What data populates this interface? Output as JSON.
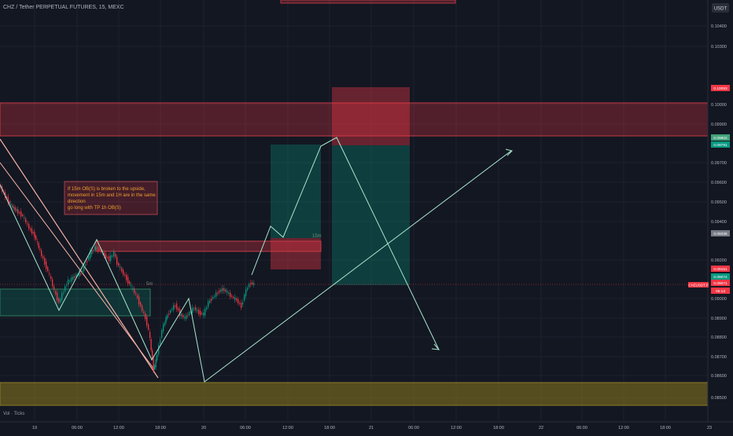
{
  "symbol_title": "CHZ / Tether PERPETUAL FUTURES, 15, MEXC",
  "currency_button": "USDT",
  "indicator_label": "Vol · Ticks",
  "annotation_lines": [
    "If 15m OB(S) is broken to the upside,",
    "movement in 15m and 1H are in the same",
    "direction",
    "go long with TP 1h OB(S)"
  ],
  "zone_labels": {
    "upper_ob": "15m",
    "lower_ob": "5m"
  },
  "price_axis": {
    "ticks": [
      "0.10400",
      "0.10300",
      "0.10000",
      "0.09900",
      "0.09700",
      "0.09600",
      "0.09500",
      "0.09400",
      "0.09200",
      "0.09000",
      "0.08900",
      "0.08800",
      "0.08700",
      "0.08600",
      "0.08500"
    ],
    "badges": [
      {
        "text": "0.10093",
        "color": "#f23645"
      },
      {
        "text": "0.09802",
        "color": "#42a37b"
      },
      {
        "text": "0.09791",
        "color": "#089981"
      },
      {
        "text": "0.09336",
        "color": "#787b86"
      },
      {
        "text": "0.09151",
        "color": "#f23645"
      },
      {
        "text": "0.09074",
        "color": "#089981"
      },
      {
        "text": "0.09071",
        "color": "#f23645"
      },
      {
        "text": "06:13",
        "color": "#f23645"
      }
    ],
    "symbol_badge": "CHZUSDT.P"
  },
  "time_axis": [
    "19",
    "06:00",
    "12:00",
    "18:00",
    "20",
    "06:00",
    "12:00",
    "18:00",
    "21",
    "06:00",
    "12:00",
    "18:00",
    "22",
    "06:00",
    "12:00",
    "18:00",
    "23"
  ],
  "colors": {
    "background": "#131722",
    "bull": "#089981",
    "bear": "#f23645",
    "supply_zone": "#f23645",
    "demand_zone": "#089981",
    "path": "#a8e6cf",
    "channel": "#f7b2a6"
  }
}
